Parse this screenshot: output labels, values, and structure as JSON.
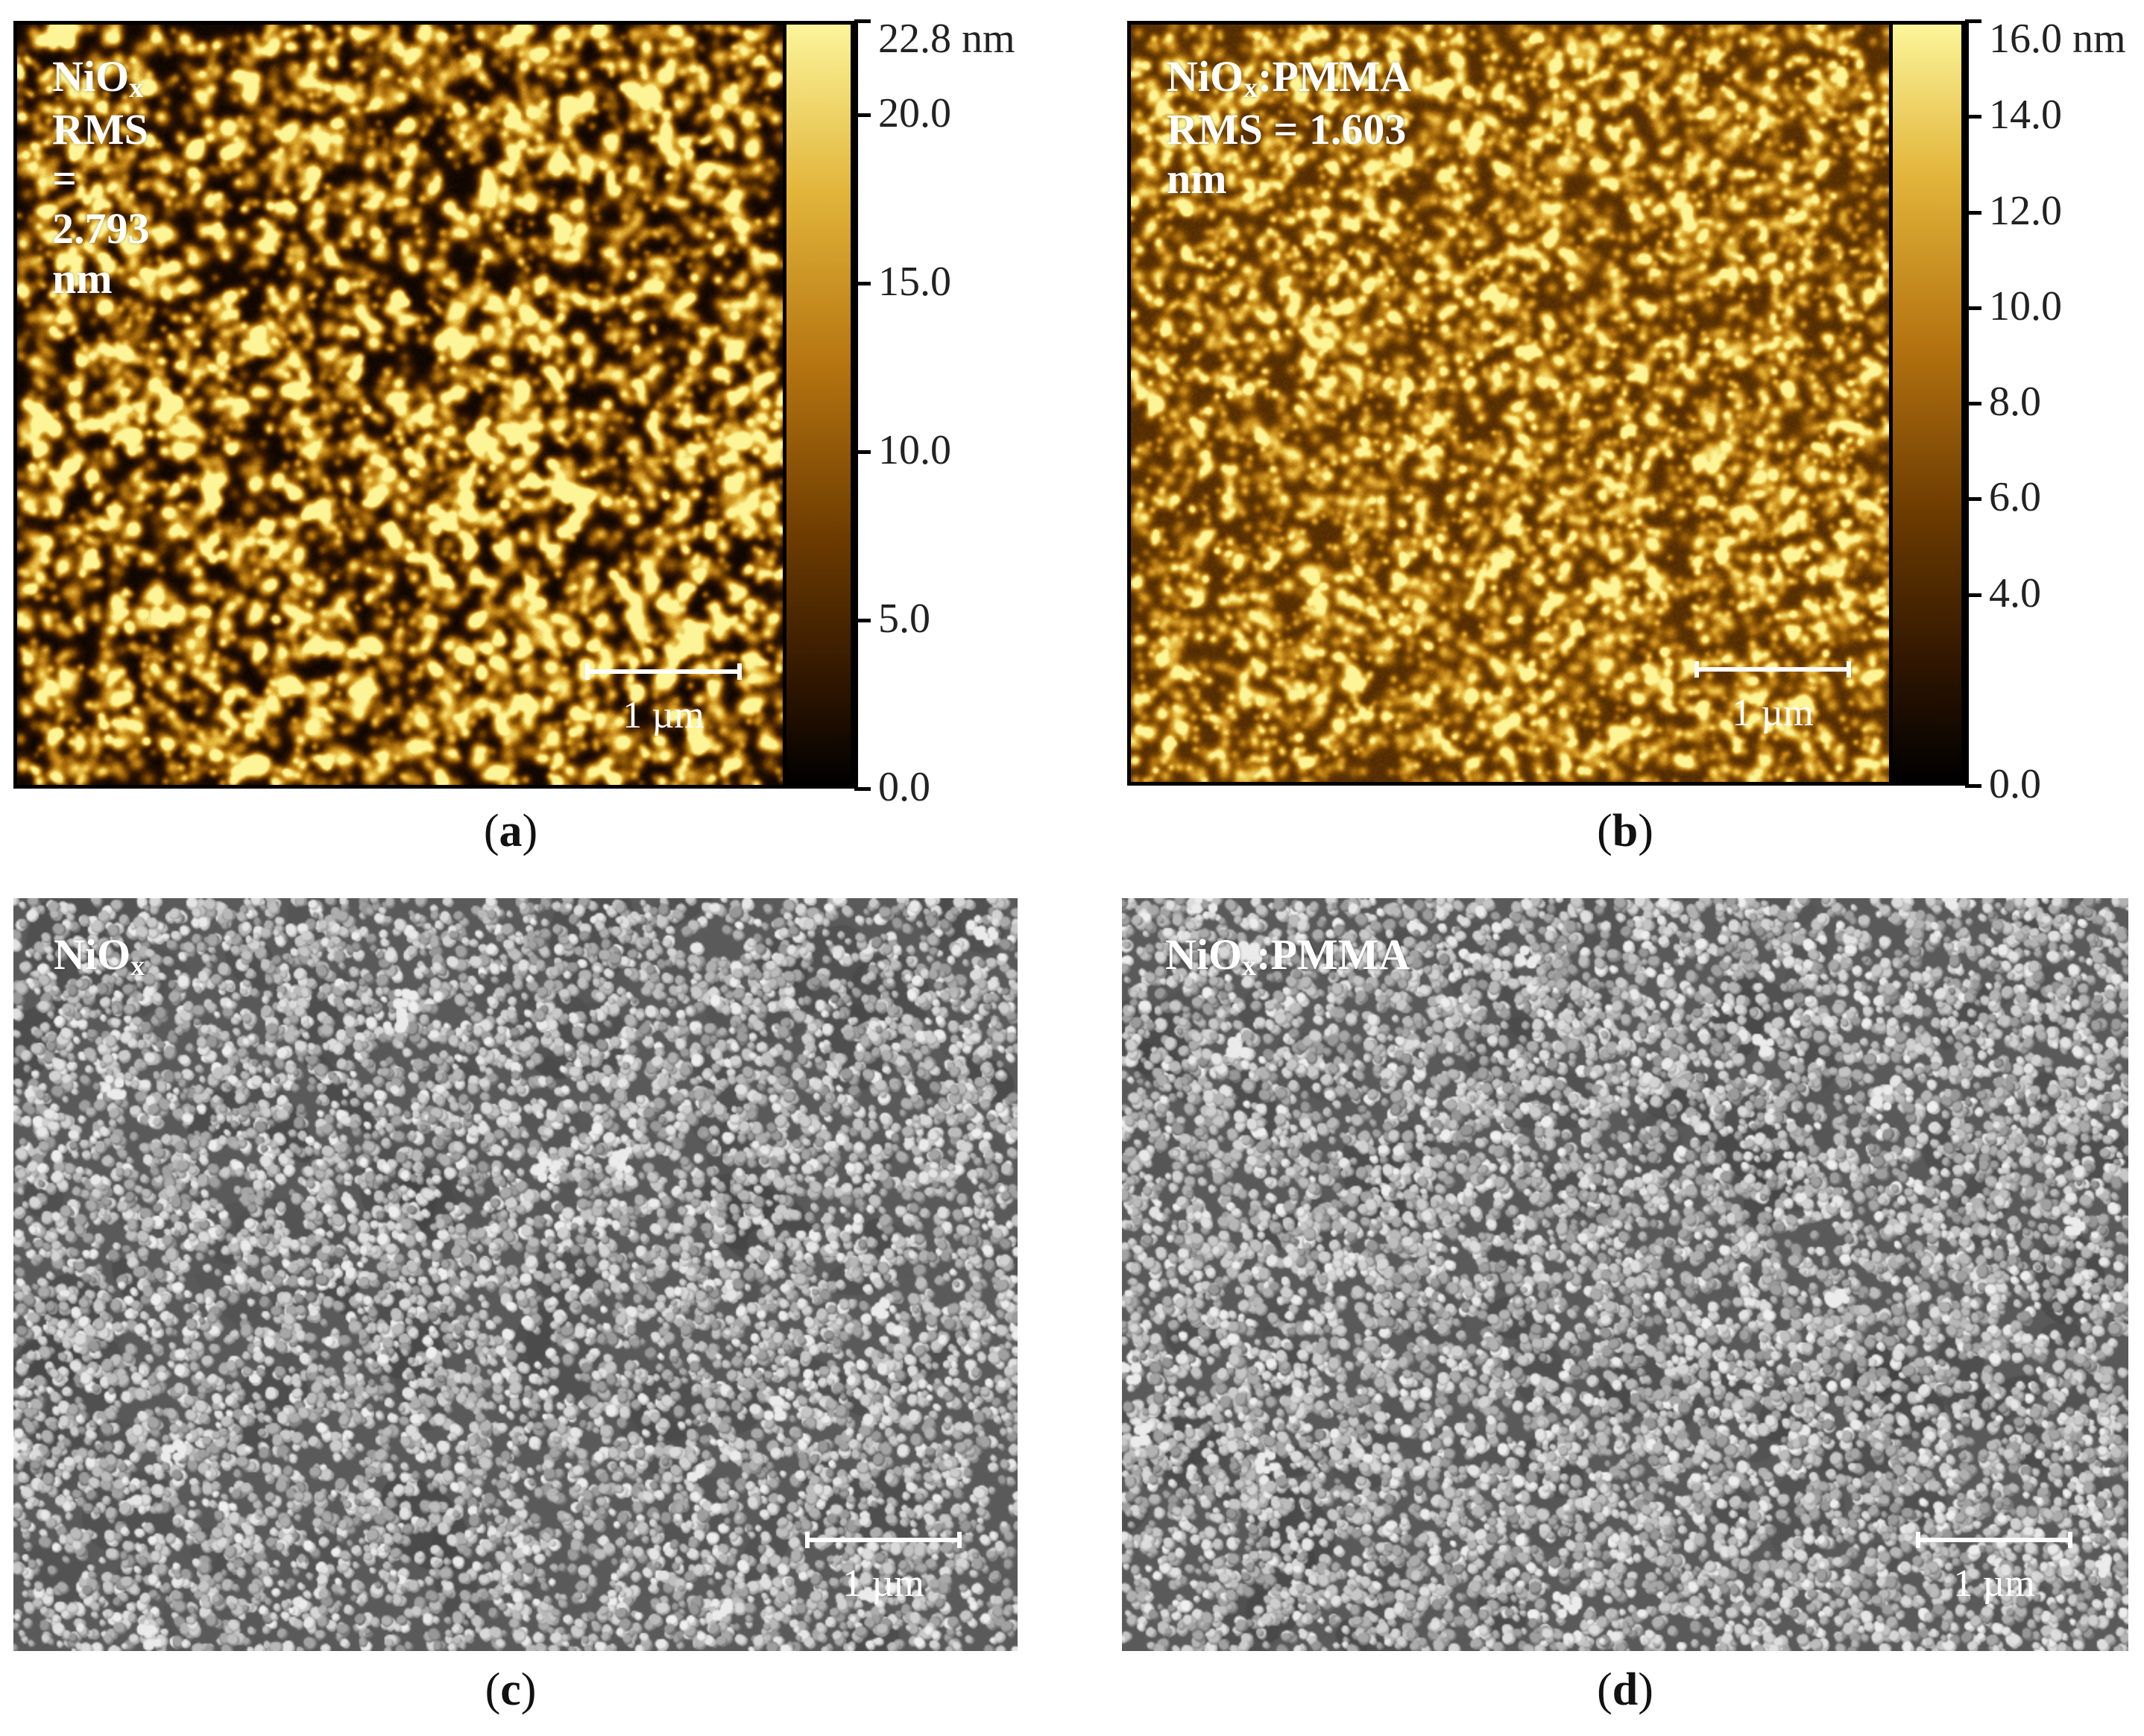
{
  "colors": {
    "afm_low": "#1a0c00",
    "afm_mid": "#b87510",
    "afm_high": "#fbf59a",
    "sem_bg": "#5a5a5a",
    "text": "#ffffff"
  },
  "panels": {
    "a": {
      "caption_open": "(",
      "caption_letter": "a",
      "caption_close": ")",
      "title_main": "NiO",
      "title_sub": "x",
      "title_rest": "",
      "rms": "RMS = 2.793 nm",
      "scale_label": "1 µm",
      "colorbar_ticks": [
        "22.8 nm",
        "20.0",
        "15.0",
        "10.0",
        "5.0",
        "0.0"
      ],
      "colorbar_range": [
        0.0,
        22.8
      ]
    },
    "b": {
      "caption_open": "(",
      "caption_letter": "b",
      "caption_close": ")",
      "title_main": "NiO",
      "title_sub": "x",
      "title_rest": ":PMMA",
      "rms": "RMS = 1.603 nm",
      "scale_label": "1 µm",
      "colorbar_ticks": [
        "16.0 nm",
        "14.0",
        "12.0",
        "10.0",
        "8.0",
        "6.0",
        "4.0",
        "0.0"
      ],
      "colorbar_range": [
        0.0,
        16.0
      ]
    },
    "c": {
      "caption_open": "(",
      "caption_letter": "c",
      "caption_close": ")",
      "title_main": "NiO",
      "title_sub": "x",
      "title_rest": "",
      "scale_label": "1 µm"
    },
    "d": {
      "caption_open": "(",
      "caption_letter": "d",
      "caption_close": ")",
      "title_main": "NiO",
      "title_sub": "x",
      "title_rest": ":PMMA",
      "scale_label": "1 µm"
    }
  }
}
